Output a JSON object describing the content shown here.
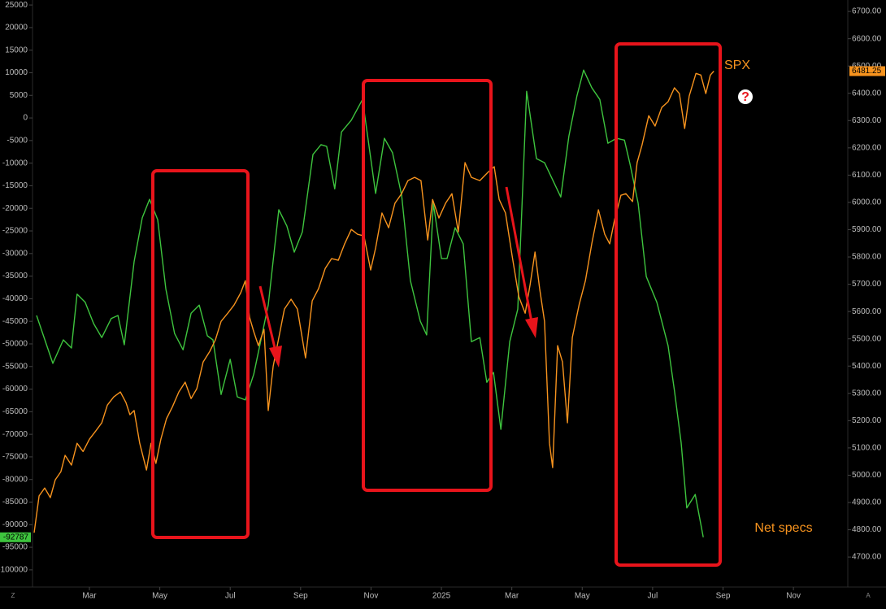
{
  "chart_data": {
    "type": "line",
    "xlim": [
      -0.54,
      24.63
    ],
    "xticks": [
      {
        "value": 2,
        "label": "Mar"
      },
      {
        "value": 4,
        "label": "May"
      },
      {
        "value": 6,
        "label": "Jul"
      },
      {
        "value": 8,
        "label": "Sep"
      },
      {
        "value": 10,
        "label": "Nov"
      },
      {
        "value": 12,
        "label": "2025"
      },
      {
        "value": 14,
        "label": "Mar"
      },
      {
        "value": 16,
        "label": "May"
      },
      {
        "value": 18,
        "label": "Jul"
      },
      {
        "value": 20,
        "label": "Sep"
      },
      {
        "value": 22,
        "label": "Nov"
      }
    ],
    "ylim": [
      -103800,
      26100
    ],
    "yticks": [
      25000,
      20000,
      15000,
      10000,
      5000,
      0,
      -5000,
      -10000,
      -15000,
      -20000,
      -25000,
      -30000,
      -35000,
      -40000,
      -45000,
      -50000,
      -55000,
      -60000,
      -65000,
      -70000,
      -75000,
      -80000,
      -85000,
      -90000,
      -95000,
      -100000
    ],
    "y2lim": [
      4590,
      6742
    ],
    "y2ticks": [
      {
        "value": 6700,
        "label": "6700.00"
      },
      {
        "value": 6600,
        "label": "6600.00"
      },
      {
        "value": 6500,
        "label": "6500.00"
      },
      {
        "value": 6400,
        "label": "6400.00"
      },
      {
        "value": 6300,
        "label": "6300.00"
      },
      {
        "value": 6200,
        "label": "6200.00"
      },
      {
        "value": 6100,
        "label": "6100.00"
      },
      {
        "value": 6000,
        "label": "6000.00"
      },
      {
        "value": 5900,
        "label": "5900.00"
      },
      {
        "value": 5800,
        "label": "5800.00"
      },
      {
        "value": 5700,
        "label": "5700.00"
      },
      {
        "value": 5600,
        "label": "5600.00"
      },
      {
        "value": 5500,
        "label": "5500.00"
      },
      {
        "value": 5400,
        "label": "5400.00"
      },
      {
        "value": 5300,
        "label": "5300.00"
      },
      {
        "value": 5200,
        "label": "5200.00"
      },
      {
        "value": 5100,
        "label": "5100.00"
      },
      {
        "value": 5000,
        "label": "5000.00"
      },
      {
        "value": 4900,
        "label": "4900.00"
      },
      {
        "value": 4800,
        "label": "4800.00"
      },
      {
        "value": 4700,
        "label": "4700.00"
      }
    ],
    "grid": false,
    "series": [
      {
        "name": "Net specs",
        "color": "#3ec43e",
        "x": [
          0.5,
          0.96,
          1.26,
          1.49,
          1.65,
          1.88,
          2.12,
          2.35,
          2.62,
          2.81,
          2.99,
          3.27,
          3.5,
          3.71,
          3.94,
          4.17,
          4.42,
          4.66,
          4.89,
          5.12,
          5.35,
          5.51,
          5.74,
          6.0,
          6.2,
          6.43,
          6.67,
          7.08,
          7.38,
          7.61,
          7.82,
          8.05,
          8.35,
          8.58,
          8.74,
          8.97,
          9.16,
          9.44,
          9.76,
          10.13,
          10.38,
          10.61,
          10.87,
          11.12,
          11.4,
          11.58,
          11.77,
          12.0,
          12.16,
          12.39,
          12.62,
          12.85,
          13.09,
          13.29,
          13.48,
          13.69,
          13.94,
          14.17,
          14.42,
          14.7,
          14.93,
          15.39,
          15.62,
          15.85,
          16.04,
          16.27,
          16.5,
          16.73,
          16.97,
          17.2,
          17.36,
          17.59,
          17.82,
          18.12,
          18.44,
          18.62,
          18.81,
          18.97,
          19.21,
          19.44
        ],
        "values": [
          -43700,
          -54300,
          -49100,
          -50900,
          -39000,
          -40800,
          -45500,
          -48600,
          -44400,
          -43700,
          -50200,
          -31800,
          -22100,
          -18000,
          -22500,
          -37800,
          -47700,
          -51300,
          -43200,
          -41400,
          -48200,
          -49100,
          -61200,
          -53400,
          -61700,
          -62400,
          -56700,
          -41400,
          -20300,
          -23900,
          -29700,
          -25200,
          -8100,
          -5900,
          -6300,
          -15700,
          -3100,
          -500,
          4100,
          -16700,
          -4500,
          -7700,
          -17100,
          -36000,
          -45000,
          -48000,
          -18900,
          -31100,
          -31100,
          -24300,
          -27900,
          -49500,
          -48600,
          -58500,
          -56300,
          -68900,
          -49500,
          -42300,
          5900,
          -9000,
          -9900,
          -17500,
          -4100,
          4900,
          10600,
          6700,
          4100,
          -5600,
          -4500,
          -4900,
          -10300,
          -18900,
          -35100,
          -40800,
          -50400,
          -60300,
          -71900,
          -86300,
          -83300,
          -92787
        ]
      },
      {
        "name": "SPX",
        "color": "#f7931e",
        "axis": "y2",
        "x": [
          0.43,
          0.57,
          0.73,
          0.89,
          1.03,
          1.19,
          1.31,
          1.49,
          1.65,
          1.82,
          2.0,
          2.18,
          2.35,
          2.51,
          2.69,
          2.88,
          3.04,
          3.15,
          3.27,
          3.43,
          3.62,
          3.75,
          3.89,
          4.03,
          4.19,
          4.36,
          4.54,
          4.72,
          4.89,
          5.05,
          5.23,
          5.42,
          5.58,
          5.74,
          5.93,
          6.11,
          6.3,
          6.43,
          6.55,
          6.67,
          6.8,
          6.96,
          7.08,
          7.22,
          7.36,
          7.54,
          7.73,
          7.91,
          8.14,
          8.33,
          8.51,
          8.7,
          8.88,
          9.07,
          9.25,
          9.44,
          9.62,
          9.8,
          9.99,
          10.13,
          10.31,
          10.5,
          10.68,
          10.87,
          11.05,
          11.24,
          11.42,
          11.61,
          11.75,
          11.93,
          12.12,
          12.3,
          12.48,
          12.67,
          12.85,
          13.09,
          13.32,
          13.5,
          13.64,
          13.82,
          14.01,
          14.2,
          14.38,
          14.52,
          14.66,
          14.79,
          14.93,
          15.07,
          15.16,
          15.3,
          15.44,
          15.58,
          15.72,
          15.91,
          16.09,
          16.27,
          16.46,
          16.64,
          16.78,
          16.92,
          17.1,
          17.24,
          17.43,
          17.56,
          17.7,
          17.89,
          18.07,
          18.26,
          18.44,
          18.62,
          18.76,
          18.91,
          19.04,
          19.23,
          19.37,
          19.51,
          19.64,
          19.74
        ],
        "values": [
          4789,
          4924,
          4953,
          4918,
          4983,
          5013,
          5073,
          5037,
          5117,
          5087,
          5132,
          5162,
          5192,
          5257,
          5287,
          5305,
          5266,
          5222,
          5237,
          5117,
          5019,
          5117,
          5043,
          5132,
          5207,
          5251,
          5305,
          5341,
          5281,
          5317,
          5415,
          5454,
          5496,
          5564,
          5594,
          5624,
          5669,
          5713,
          5579,
          5526,
          5475,
          5535,
          5237,
          5400,
          5490,
          5609,
          5645,
          5609,
          5430,
          5639,
          5684,
          5758,
          5794,
          5788,
          5848,
          5901,
          5883,
          5877,
          5752,
          5833,
          5961,
          5907,
          5997,
          6032,
          6080,
          6092,
          6080,
          5862,
          6011,
          5943,
          5997,
          6032,
          5892,
          6146,
          6092,
          6080,
          6110,
          6131,
          6011,
          5961,
          5803,
          5654,
          5594,
          5699,
          5818,
          5684,
          5564,
          5117,
          5028,
          5475,
          5415,
          5192,
          5505,
          5624,
          5713,
          5848,
          5973,
          5883,
          5848,
          5937,
          6026,
          6032,
          6003,
          6146,
          6211,
          6318,
          6280,
          6348,
          6369,
          6420,
          6399,
          6271,
          6390,
          6473,
          6467,
          6399,
          6467,
          6481.25
        ]
      }
    ],
    "annotations": {
      "question_mark": "?"
    },
    "corner_labels": [
      "Z",
      "A"
    ]
  }
}
